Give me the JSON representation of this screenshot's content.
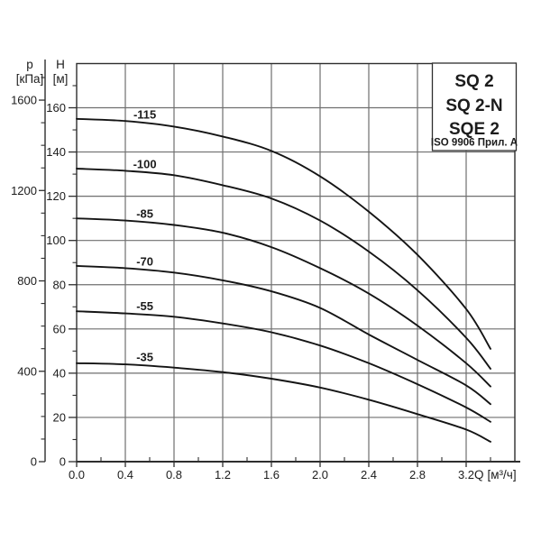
{
  "page": {
    "background": "#ffffff"
  },
  "legend_box": {
    "models": [
      "SQ 2",
      "SQ 2-N",
      "SQE 2"
    ],
    "standard": "ISO 9906 Прил. А"
  },
  "colors": {
    "curve": "#141414",
    "grid": "#6f6f6f",
    "axis": "#2e2e2e",
    "text": "#1c1c1c"
  },
  "chart_data": {
    "type": "line",
    "legend_position": "top-right",
    "grid": true,
    "x_label": "Q",
    "x_unit": "[м³/ч]",
    "x": [
      0,
      0.4,
      0.8,
      1.2,
      1.6,
      2.0,
      2.4,
      2.8,
      3.2,
      3.4
    ],
    "series": [
      {
        "name": "-115",
        "values": [
          155,
          154,
          151.5,
          147,
          140.5,
          129,
          113,
          93.5,
          69,
          51
        ]
      },
      {
        "name": "-100",
        "values": [
          132.5,
          131.5,
          129.5,
          125,
          119,
          109,
          95,
          77.5,
          56,
          42
        ]
      },
      {
        "name": "-85",
        "values": [
          110,
          109,
          107,
          103.5,
          97,
          87.5,
          76,
          61.5,
          44.5,
          34
        ]
      },
      {
        "name": "-70",
        "values": [
          88.5,
          87.5,
          85.5,
          82,
          77,
          69.5,
          57.5,
          46,
          34.5,
          26
        ]
      },
      {
        "name": "-55",
        "values": [
          68,
          67,
          65.5,
          62.5,
          58.5,
          52.5,
          44.5,
          35,
          24.5,
          18
        ]
      },
      {
        "name": "-35",
        "values": [
          44.5,
          44,
          42.5,
          40.5,
          37.5,
          33.5,
          28,
          21.5,
          14.5,
          9
        ]
      }
    ],
    "head_axis": {
      "label": "H",
      "unit": "[м]",
      "major_ticks": [
        0,
        20,
        40,
        60,
        80,
        100,
        120,
        140,
        160
      ],
      "minor_step": 10,
      "range": [
        0,
        180
      ]
    },
    "pressure_axis": {
      "label": "p",
      "unit": "[кПа]",
      "major_ticks": [
        0,
        400,
        800,
        1200,
        1600
      ],
      "minor_step": 100,
      "range": [
        0,
        1780
      ]
    },
    "flow_axis": {
      "major_ticks": [
        0,
        0.4,
        0.8,
        1.2,
        1.6,
        2.0,
        2.4,
        2.8,
        3.2
      ],
      "minor_step": 0.2,
      "range": [
        0,
        3.6
      ]
    }
  }
}
